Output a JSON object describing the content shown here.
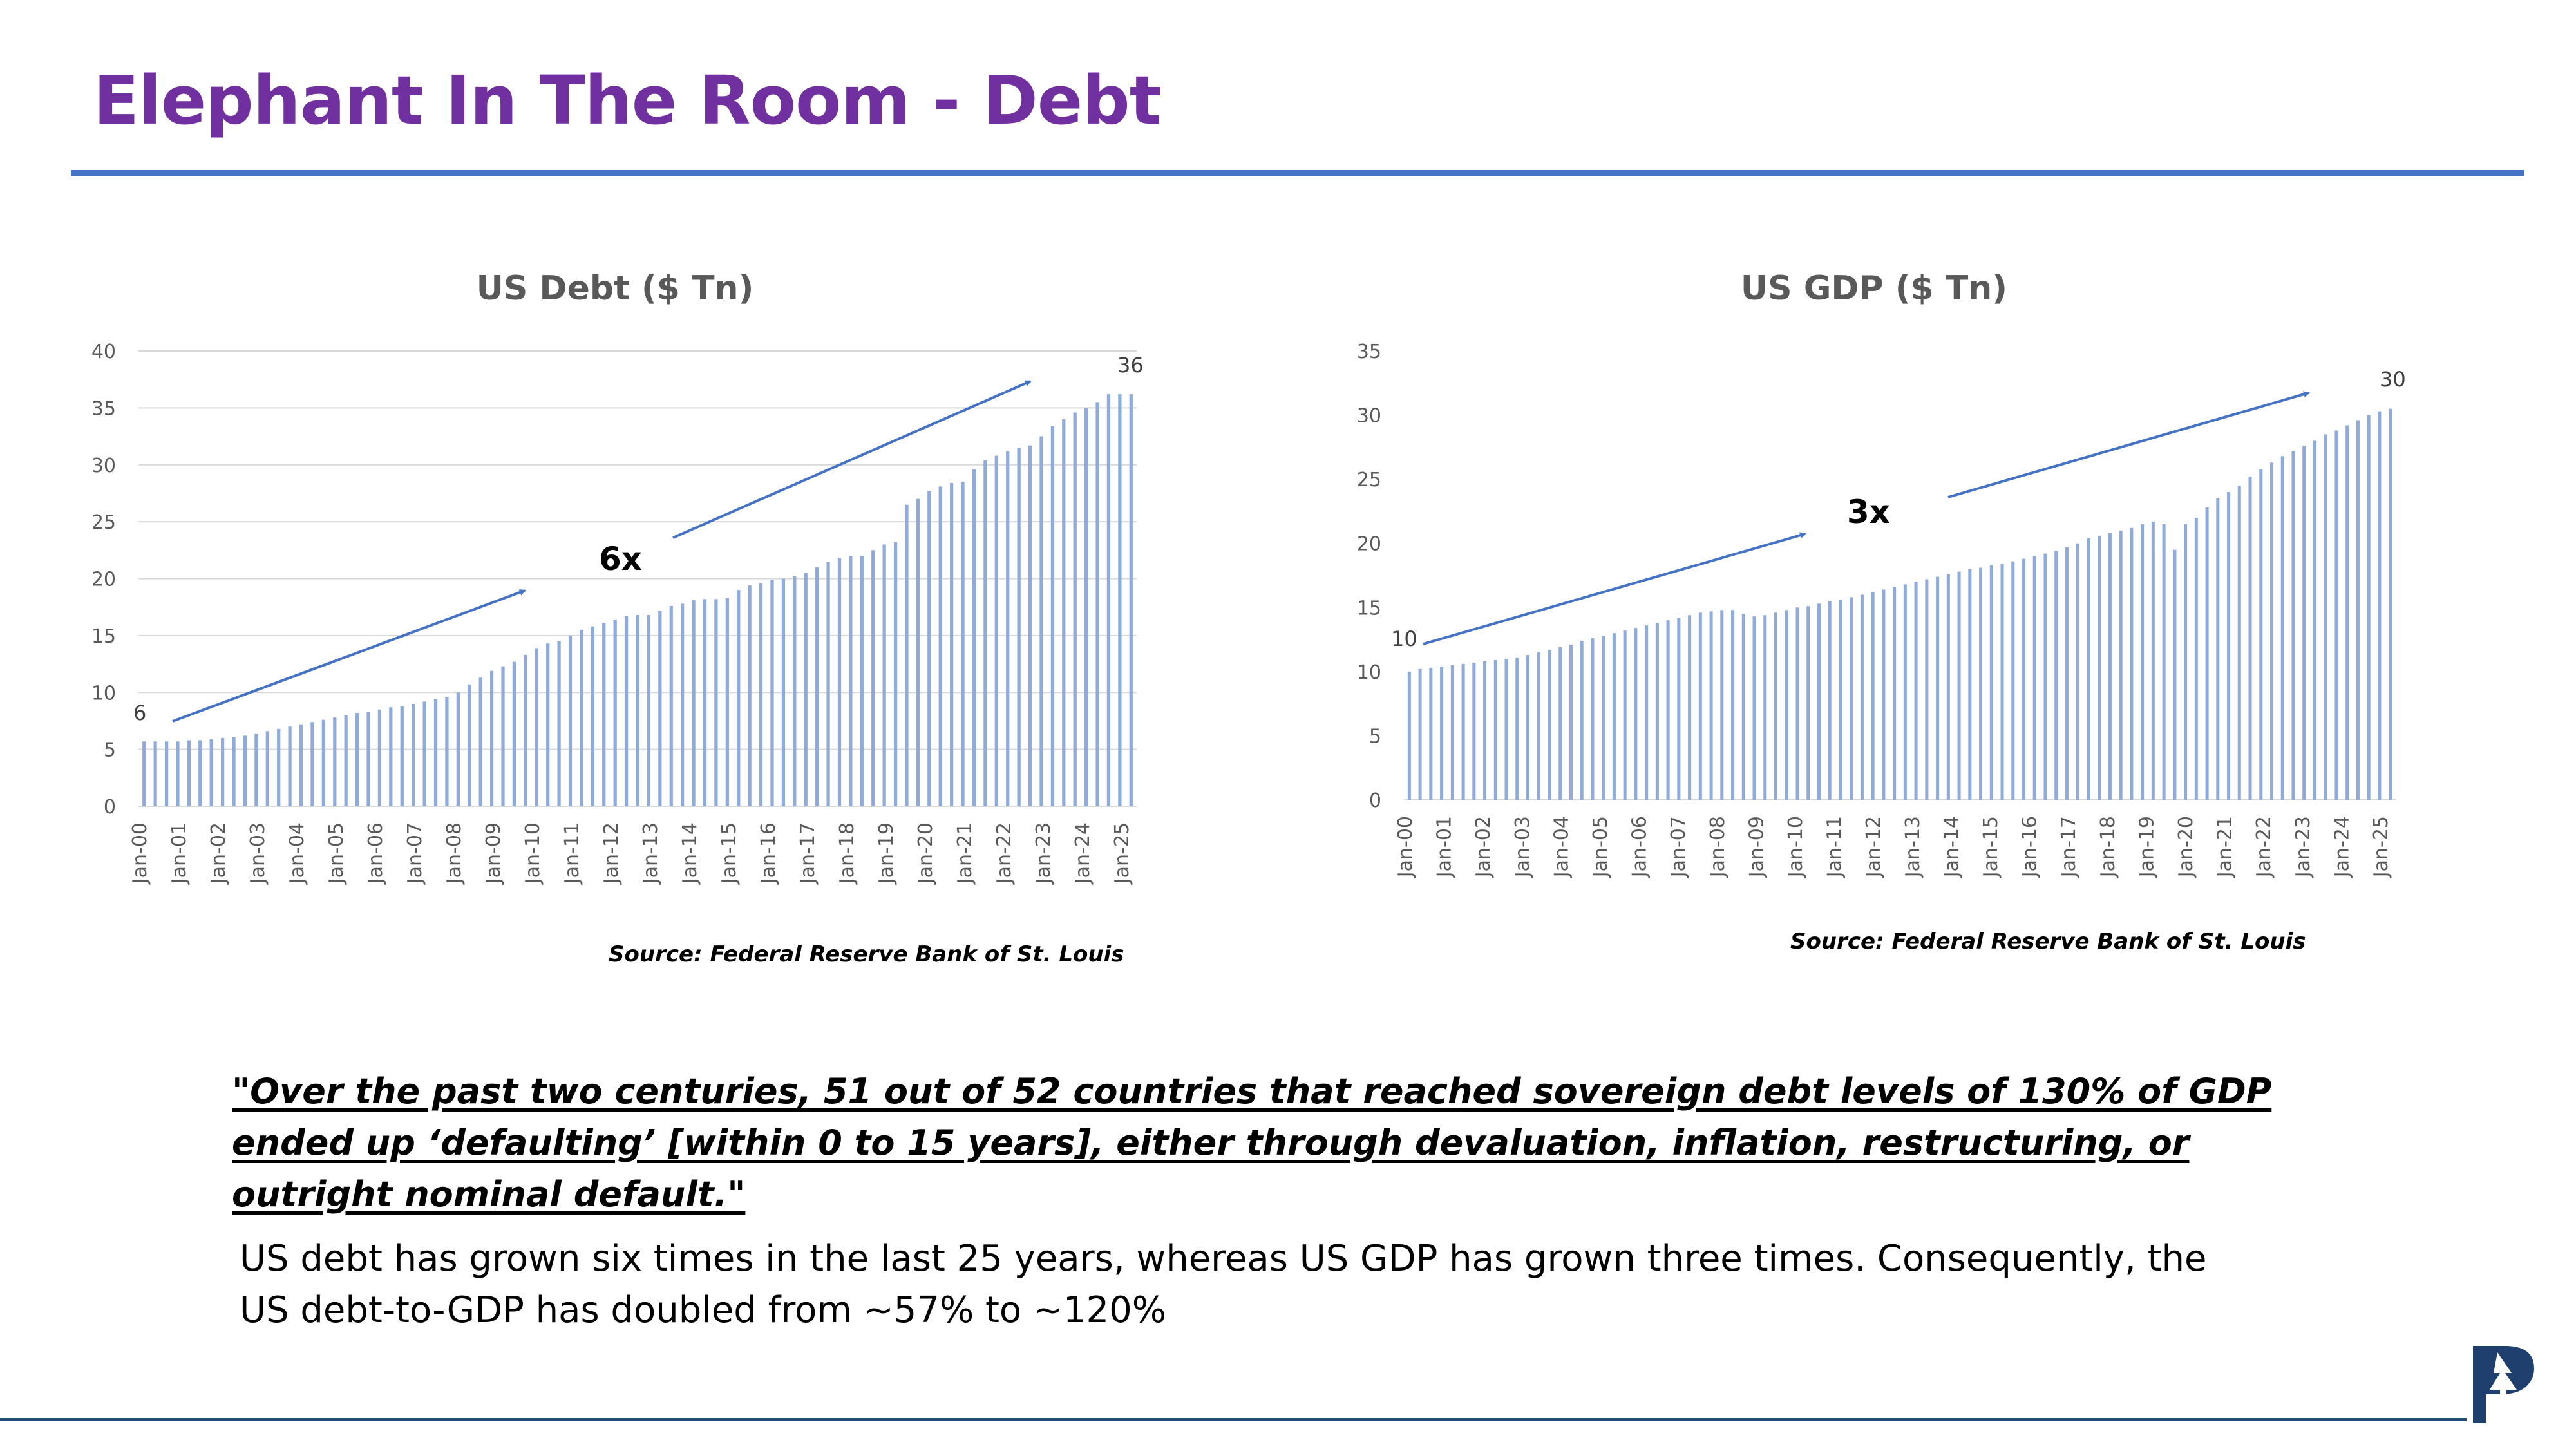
{
  "slide": {
    "title": "Elephant In The Room - Debt",
    "quote": "\"Over the past two centuries, 51 out of 52 countries that reached sovereign debt levels of 130% of GDP ended up ‘defaulting’ [within 0 to 15 years], either through devaluation, inflation, restructuring, or outright nominal default.\"",
    "body": "US debt has grown six times in the last 25 years, whereas US GDP has grown three times. Consequently, the US debt-to-GDP has doubled from ~57% to ~120%"
  },
  "colors": {
    "title": "#7030a0",
    "rule": "#4472c4",
    "bars": "#8faadc",
    "arrow": "#4472c4",
    "footer": "#1f4e79"
  },
  "logo": {
    "icon": "tree-p-logo-icon"
  },
  "chart_data": [
    {
      "type": "bar",
      "title": "US Debt ($ Tn)",
      "source": "Source: Federal Reserve Bank of St. Louis",
      "ylim": [
        0,
        40
      ],
      "yticks": [
        0,
        5,
        10,
        15,
        20,
        25,
        30,
        35,
        40
      ],
      "grid": true,
      "xtick_labels": [
        "Jan-00",
        "Jan-01",
        "Jan-02",
        "Jan-03",
        "Jan-04",
        "Jan-05",
        "Jan-06",
        "Jan-07",
        "Jan-08",
        "Jan-09",
        "Jan-10",
        "Jan-11",
        "Jan-12",
        "Jan-13",
        "Jan-14",
        "Jan-15",
        "Jan-16",
        "Jan-17",
        "Jan-18",
        "Jan-19",
        "Jan-20",
        "Jan-21",
        "Jan-22",
        "Jan-23",
        "Jan-24",
        "Jan-25"
      ],
      "values": [
        5.7,
        5.7,
        5.7,
        5.7,
        5.8,
        5.8,
        5.9,
        6.0,
        6.1,
        6.2,
        6.4,
        6.6,
        6.8,
        7.0,
        7.2,
        7.4,
        7.6,
        7.8,
        8.0,
        8.2,
        8.3,
        8.5,
        8.7,
        8.8,
        9.0,
        9.2,
        9.4,
        9.6,
        10.0,
        10.7,
        11.3,
        11.9,
        12.3,
        12.7,
        13.3,
        13.9,
        14.3,
        14.5,
        15.0,
        15.5,
        15.8,
        16.1,
        16.4,
        16.7,
        16.8,
        16.8,
        17.2,
        17.6,
        17.8,
        18.1,
        18.2,
        18.2,
        18.3,
        19.0,
        19.4,
        19.6,
        19.9,
        20.0,
        20.2,
        20.5,
        21.0,
        21.5,
        21.8,
        22.0,
        22.0,
        22.5,
        23.0,
        23.2,
        26.5,
        27.0,
        27.7,
        28.1,
        28.4,
        28.5,
        29.6,
        30.4,
        30.8,
        31.2,
        31.5,
        31.7,
        32.5,
        33.4,
        34.0,
        34.6,
        35.0,
        35.5,
        36.2,
        36.2,
        36.2
      ],
      "annotations": {
        "start_label": "6",
        "end_label": "36",
        "growth_label": "6x"
      }
    },
    {
      "type": "bar",
      "title": "US GDP ($ Tn)",
      "source": "Source: Federal Reserve Bank of St. Louis",
      "ylim": [
        0,
        35
      ],
      "yticks": [
        0,
        5,
        10,
        15,
        20,
        25,
        30,
        35
      ],
      "grid": false,
      "xtick_labels": [
        "Jan-00",
        "Jan-01",
        "Jan-02",
        "Jan-03",
        "Jan-04",
        "Jan-05",
        "Jan-06",
        "Jan-07",
        "Jan-08",
        "Jan-09",
        "Jan-10",
        "Jan-11",
        "Jan-12",
        "Jan-13",
        "Jan-14",
        "Jan-15",
        "Jan-16",
        "Jan-17",
        "Jan-18",
        "Jan-19",
        "Jan-20",
        "Jan-21",
        "Jan-22",
        "Jan-23",
        "Jan-24",
        "Jan-25"
      ],
      "values": [
        10.0,
        10.2,
        10.3,
        10.4,
        10.5,
        10.6,
        10.7,
        10.8,
        10.9,
        11.0,
        11.1,
        11.3,
        11.5,
        11.7,
        11.9,
        12.1,
        12.4,
        12.6,
        12.8,
        13.0,
        13.2,
        13.4,
        13.6,
        13.8,
        14.0,
        14.2,
        14.4,
        14.6,
        14.7,
        14.8,
        14.8,
        14.5,
        14.3,
        14.4,
        14.6,
        14.8,
        15.0,
        15.1,
        15.3,
        15.5,
        15.6,
        15.8,
        16.0,
        16.2,
        16.4,
        16.6,
        16.8,
        17.0,
        17.2,
        17.4,
        17.6,
        17.8,
        18.0,
        18.1,
        18.3,
        18.4,
        18.6,
        18.8,
        19.0,
        19.2,
        19.4,
        19.7,
        20.0,
        20.4,
        20.6,
        20.8,
        21.0,
        21.2,
        21.5,
        21.7,
        21.5,
        19.5,
        21.5,
        22.0,
        22.8,
        23.5,
        24.0,
        24.5,
        25.2,
        25.8,
        26.3,
        26.8,
        27.2,
        27.6,
        28.0,
        28.5,
        28.8,
        29.2,
        29.6,
        30.0,
        30.3,
        30.5
      ],
      "annotations": {
        "start_label": "10",
        "end_label": "30",
        "growth_label": "3x"
      }
    }
  ]
}
